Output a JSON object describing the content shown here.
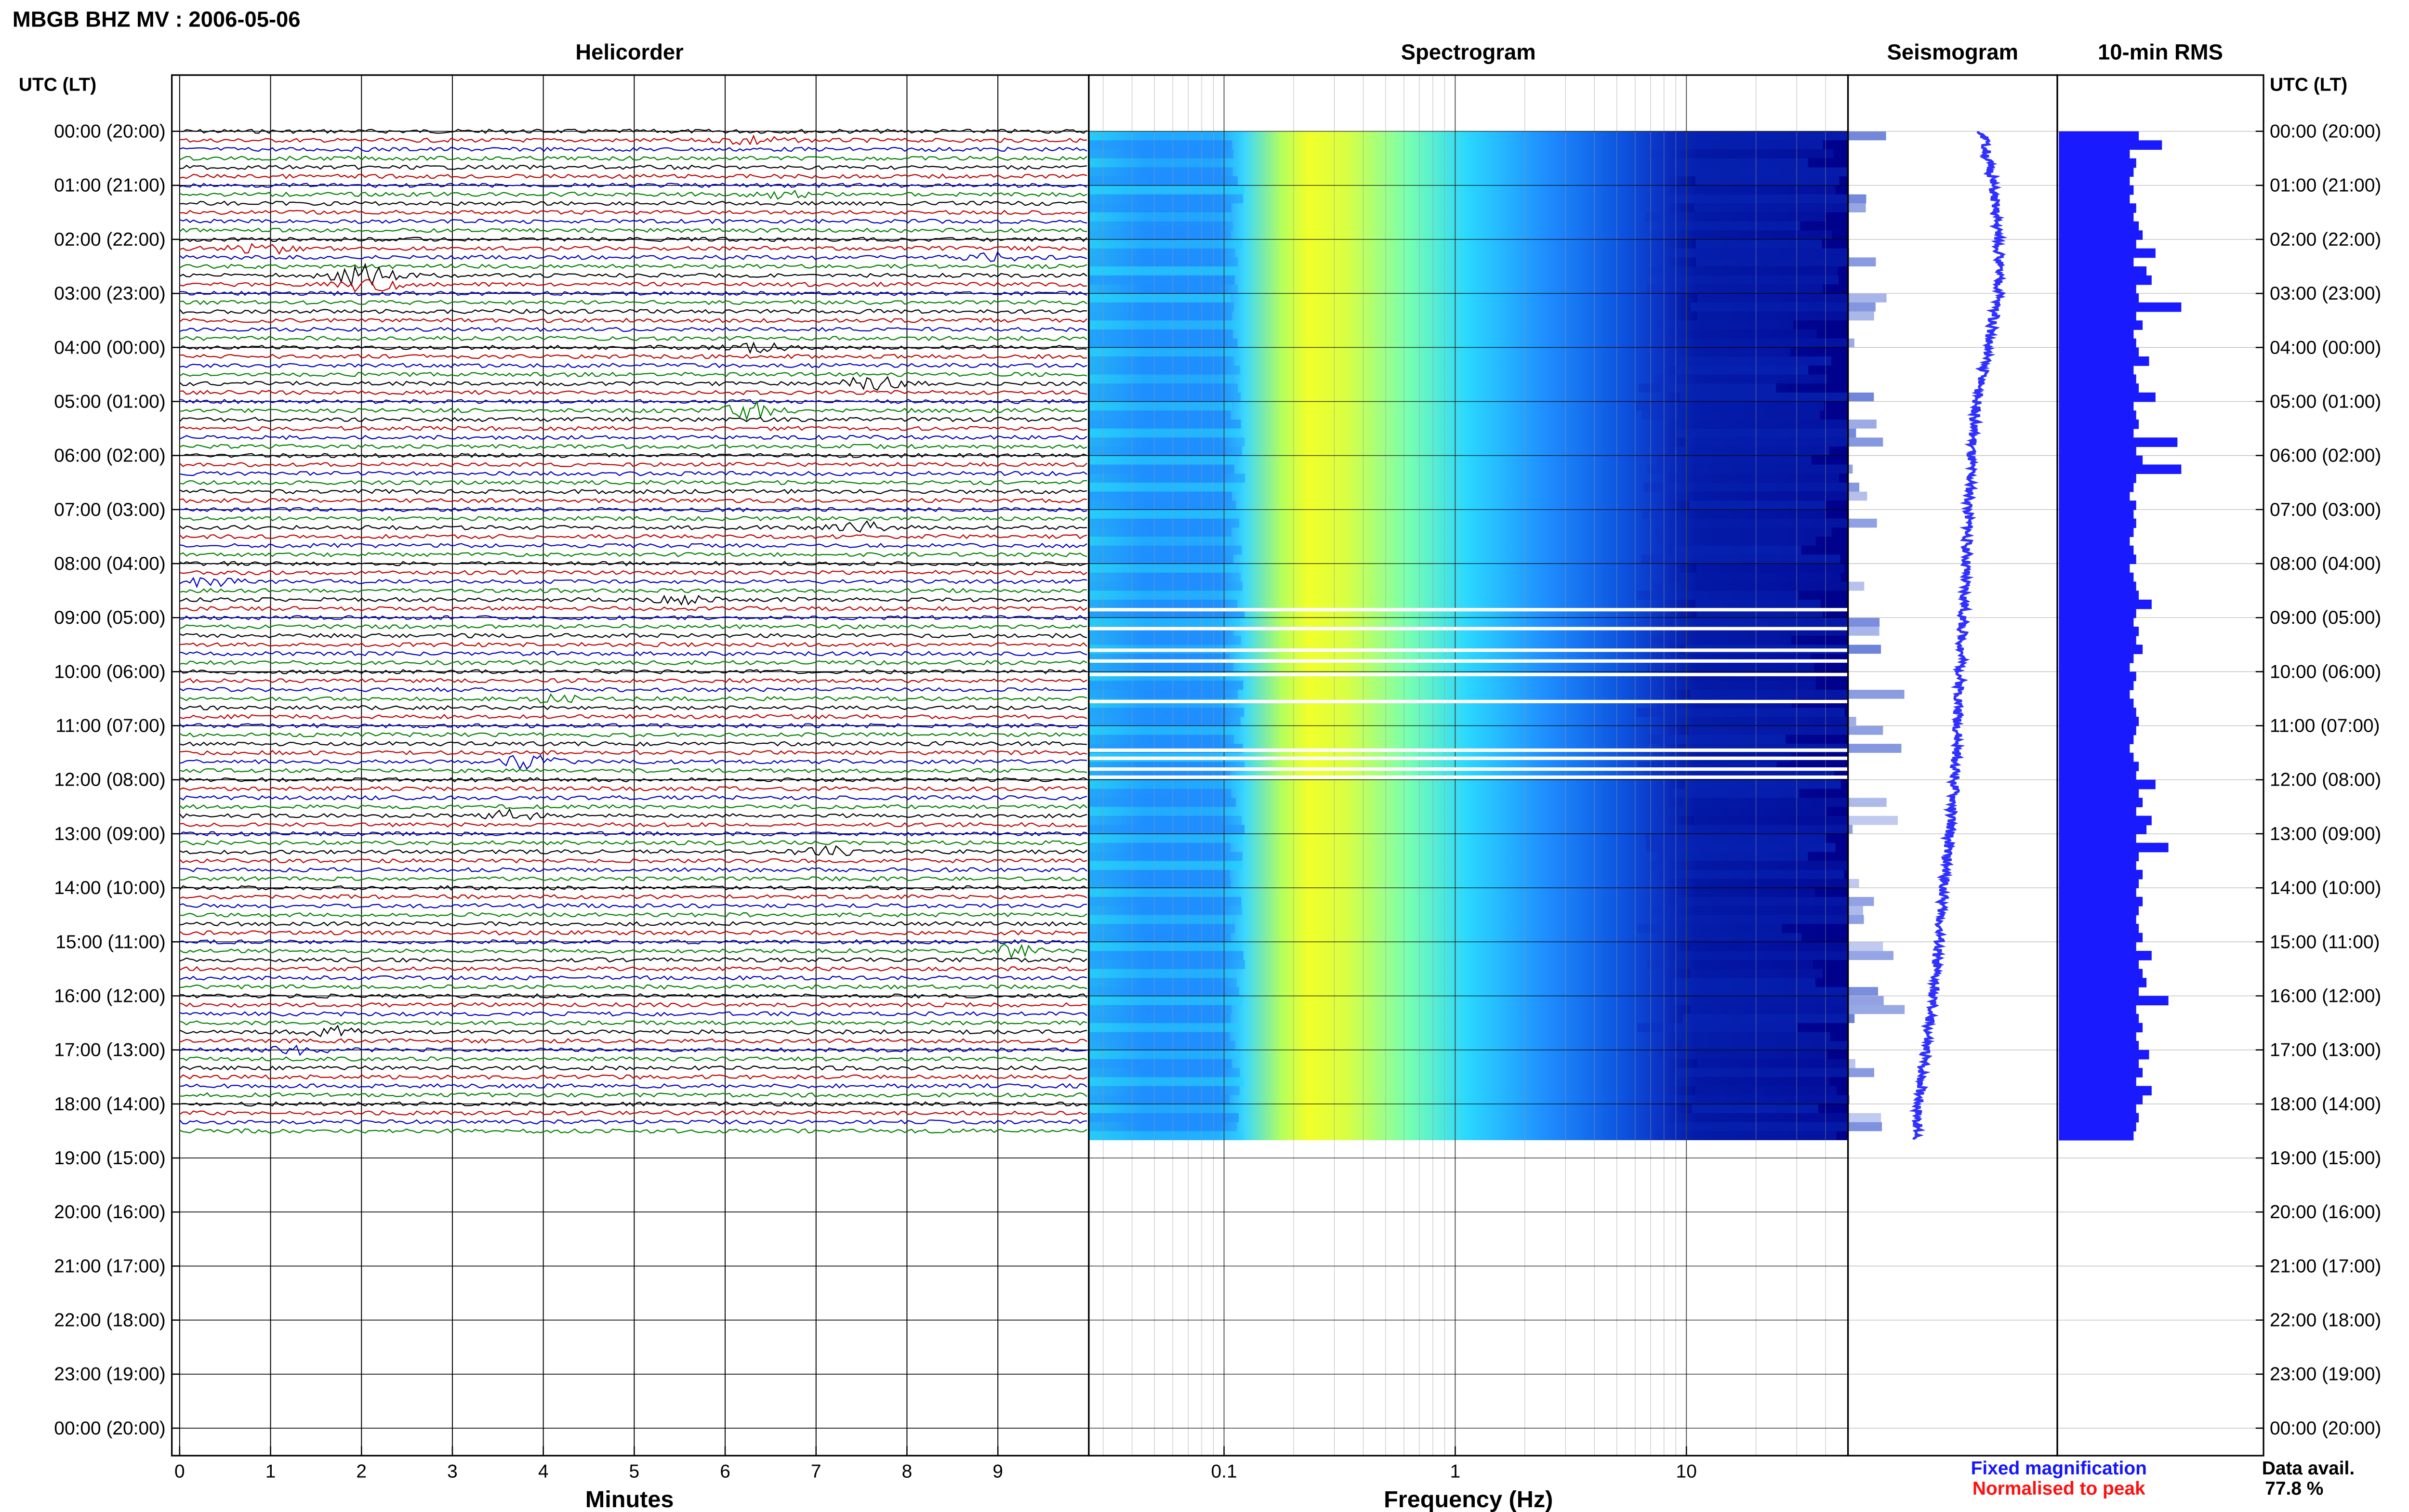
{
  "figure": {
    "title": "MBGB BHZ MV : 2006-05-06",
    "time_header": "UTC (LT)"
  },
  "panels": {
    "helicorder": {
      "title": "Helicorder",
      "xlabel": "Minutes"
    },
    "spectrogram": {
      "title": "Spectrogram",
      "xlabel": "Frequency (Hz)"
    },
    "seismogram": {
      "title": "Seismogram"
    },
    "rms": {
      "title": "10-min RMS"
    }
  },
  "legend": {
    "fixed": "Fixed magnification",
    "normalised": "Normalised to peak"
  },
  "availability": {
    "label": "Data avail.",
    "value": "77.8 %"
  },
  "colors": {
    "fixed": "#1515ff",
    "normalised": "#ff1010",
    "trace_colors": [
      "#000000",
      "#c00000",
      "#0000c0",
      "#008000"
    ],
    "rms_bar": "#1a1aff",
    "seismo": "#3030ff",
    "spectrogram_ramp": [
      "#00008b",
      "#0033cc",
      "#1f8fff",
      "#2ad6ff",
      "#46ffd8",
      "#c6ff4a",
      "#f2ff2a"
    ]
  },
  "chart_data": [
    {
      "type": "heatmap",
      "title": "Helicorder",
      "xlabel": "Minutes",
      "x_ticks": [
        "0",
        "1",
        "2",
        "3",
        "4",
        "5",
        "6",
        "7",
        "8",
        "9"
      ],
      "xlim": [
        0,
        10
      ],
      "y_ticks": [
        "00:00 (20:00)",
        "01:00 (21:00)",
        "02:00 (22:00)",
        "03:00 (23:00)",
        "04:00 (00:00)",
        "05:00 (01:00)",
        "06:00 (02:00)",
        "07:00 (03:00)",
        "08:00 (04:00)",
        "09:00 (05:00)",
        "10:00 (06:00)",
        "11:00 (07:00)",
        "12:00 (08:00)",
        "13:00 (09:00)",
        "14:00 (10:00)",
        "15:00 (11:00)",
        "16:00 (12:00)",
        "17:00 (13:00)",
        "18:00 (14:00)",
        "19:00 (15:00)",
        "20:00 (16:00)",
        "21:00 (17:00)",
        "22:00 (18:00)",
        "23:00 (19:00)",
        "00:00 (20:00)"
      ],
      "traces_per_hour": 6,
      "data_end_hours": 18.67,
      "events": [
        {
          "hour": 0.1,
          "minute": 6.3,
          "amp": 0.6
        },
        {
          "hour": 1.1,
          "minute": 6.6,
          "amp": 0.4
        },
        {
          "hour": 2.15,
          "minute": 0.9,
          "amp": 0.7
        },
        {
          "hour": 2.3,
          "minute": 8.9,
          "amp": 0.6
        },
        {
          "hour": 2.6,
          "minute": 1.9,
          "amp": 0.8
        },
        {
          "hour": 2.75,
          "minute": 2.1,
          "amp": 1.0
        },
        {
          "hour": 4.0,
          "minute": 6.4,
          "amp": 0.5
        },
        {
          "hour": 4.65,
          "minute": 7.6,
          "amp": 0.9
        },
        {
          "hour": 5.2,
          "minute": 6.3,
          "amp": 1.0
        },
        {
          "hour": 7.4,
          "minute": 7.5,
          "amp": 0.6
        },
        {
          "hour": 8.3,
          "minute": 0.3,
          "amp": 0.5
        },
        {
          "hour": 8.65,
          "minute": 5.5,
          "amp": 0.4
        },
        {
          "hour": 10.45,
          "minute": 4.1,
          "amp": 0.4
        },
        {
          "hour": 11.7,
          "minute": 3.8,
          "amp": 1.0
        },
        {
          "hour": 12.65,
          "minute": 3.6,
          "amp": 0.6
        },
        {
          "hour": 13.35,
          "minute": 7.1,
          "amp": 0.6
        },
        {
          "hour": 15.2,
          "minute": 9.2,
          "amp": 0.9
        },
        {
          "hour": 16.65,
          "minute": 1.7,
          "amp": 0.6
        },
        {
          "hour": 17.0,
          "minute": 1.3,
          "amp": 0.5
        }
      ]
    },
    {
      "type": "heatmap",
      "title": "Spectrogram",
      "xlabel": "Frequency (Hz)",
      "x_scale": "log",
      "xlim": [
        0.026,
        50
      ],
      "x_ticks": [
        "0.1",
        "1",
        "10"
      ],
      "x_tick_values": [
        0.1,
        1,
        10
      ],
      "peak_frequency_hz": 0.27,
      "data_gap_hours": [
        8.85,
        9.2,
        9.6,
        9.8,
        10.05,
        10.55,
        11.45,
        11.6,
        11.8,
        11.95
      ],
      "data_end_hours": 18.67
    },
    {
      "type": "line",
      "title": "Seismogram",
      "description_series": "fixed magnification trace",
      "points_hours": [
        0,
        1,
        2,
        3,
        4,
        5,
        6,
        8,
        10,
        12,
        14,
        16,
        17,
        18,
        18.67
      ],
      "points_offset": [
        0.1,
        0.2,
        0.25,
        0.25,
        0.15,
        0.05,
        0.0,
        -0.05,
        -0.1,
        -0.15,
        -0.25,
        -0.35,
        -0.42,
        -0.48,
        -0.5
      ],
      "data_end_hours": 18.67
    },
    {
      "type": "bar",
      "title": "10-min RMS",
      "orientation": "horizontal",
      "bin_minutes": 10,
      "values": [
        0.62,
        0.8,
        0.55,
        0.6,
        0.58,
        0.55,
        0.58,
        0.55,
        0.6,
        0.58,
        0.62,
        0.65,
        0.6,
        0.75,
        0.58,
        0.68,
        0.72,
        0.6,
        0.62,
        0.95,
        0.6,
        0.65,
        0.58,
        0.6,
        0.62,
        0.7,
        0.58,
        0.6,
        0.62,
        0.75,
        0.58,
        0.6,
        0.62,
        0.58,
        0.92,
        0.6,
        0.65,
        0.95,
        0.6,
        0.58,
        0.55,
        0.6,
        0.58,
        0.6,
        0.58,
        0.55,
        0.58,
        0.6,
        0.55,
        0.58,
        0.6,
        0.62,
        0.72,
        0.6,
        0.58,
        0.62,
        0.6,
        0.65,
        0.58,
        0.55,
        0.6,
        0.58,
        0.55,
        0.58,
        0.6,
        0.62,
        0.6,
        0.58,
        0.55,
        0.58,
        0.62,
        0.6,
        0.75,
        0.62,
        0.65,
        0.6,
        0.72,
        0.68,
        0.6,
        0.85,
        0.62,
        0.6,
        0.65,
        0.62,
        0.6,
        0.65,
        0.62,
        0.6,
        0.62,
        0.65,
        0.6,
        0.72,
        0.62,
        0.65,
        0.68,
        0.62,
        0.85,
        0.6,
        0.62,
        0.65,
        0.6,
        0.62,
        0.7,
        0.62,
        0.65,
        0.6,
        0.72,
        0.65,
        0.6,
        0.62,
        0.6,
        0.58
      ],
      "xlim": [
        0,
        1.6
      ],
      "data_end_hours": 18.67
    }
  ]
}
